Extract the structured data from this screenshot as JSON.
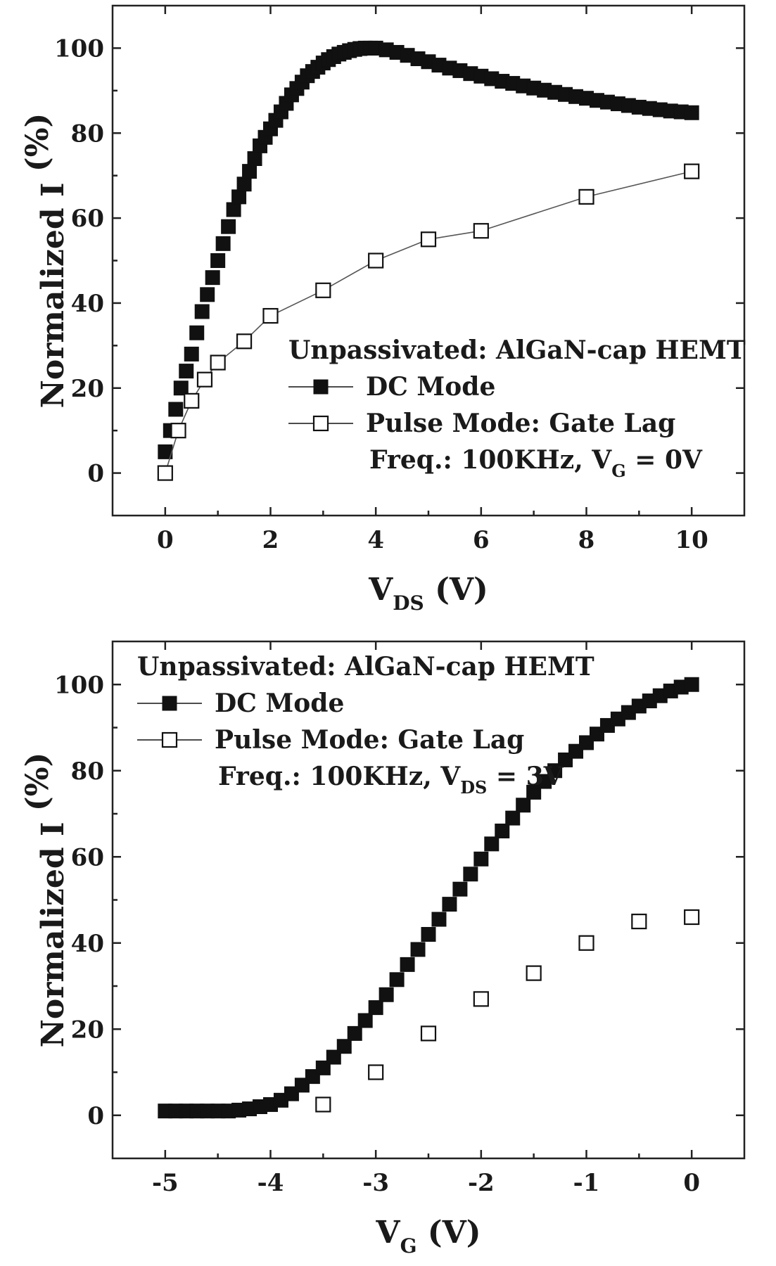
{
  "chart_data": [
    {
      "type": "scatter",
      "title": "",
      "xlabel": {
        "main": "V",
        "sub": "DS",
        "unit": " (V)"
      },
      "ylabel": {
        "main": "Normalized I",
        "unit": "(%)"
      },
      "xlim": [
        -1,
        11
      ],
      "ylim": [
        -10,
        110
      ],
      "xticks": [
        0,
        2,
        4,
        6,
        8,
        10
      ],
      "yticks": [
        0,
        20,
        40,
        60,
        80,
        100
      ],
      "grid": false,
      "legend": {
        "placement": "center-right",
        "title": "Unpassivated: AlGaN-cap HEMT",
        "note": {
          "prefix": "Freq.: 100KHz, V",
          "sub": "G",
          "suffix": " = 0V"
        }
      },
      "series": [
        {
          "name": "DC Mode",
          "marker": "filled-square",
          "x": [
            0.0,
            0.1,
            0.2,
            0.3,
            0.4,
            0.5,
            0.6,
            0.7,
            0.8,
            0.9,
            1.0,
            1.1,
            1.2,
            1.3,
            1.4,
            1.5,
            1.6,
            1.7,
            1.8,
            1.9,
            2.0,
            2.1,
            2.2,
            2.3,
            2.4,
            2.5,
            2.6,
            2.7,
            2.8,
            2.9,
            3.0,
            3.1,
            3.2,
            3.3,
            3.4,
            3.5,
            3.6,
            3.7,
            3.8,
            3.9,
            4.0,
            4.2,
            4.4,
            4.6,
            4.8,
            5.0,
            5.2,
            5.4,
            5.6,
            5.8,
            6.0,
            6.2,
            6.4,
            6.6,
            6.8,
            7.0,
            7.2,
            7.4,
            7.6,
            7.8,
            8.0,
            8.2,
            8.4,
            8.6,
            8.8,
            9.0,
            9.2,
            9.4,
            9.6,
            9.8,
            10.0
          ],
          "y": [
            5,
            10,
            15,
            20,
            24,
            28,
            33,
            38,
            42,
            46,
            50,
            54,
            58,
            62,
            65,
            68,
            71,
            74,
            77,
            79,
            81,
            83,
            85,
            87,
            89,
            90.5,
            92,
            93.5,
            94.5,
            95.5,
            96.5,
            97.3,
            98,
            98.6,
            99,
            99.4,
            99.7,
            99.9,
            100,
            100,
            100,
            99.6,
            99,
            98.3,
            97.5,
            96.8,
            96,
            95.3,
            94.7,
            94,
            93.4,
            92.8,
            92.2,
            91.7,
            91.1,
            90.6,
            90.1,
            89.6,
            89.1,
            88.6,
            88.2,
            87.7,
            87.3,
            86.9,
            86.5,
            86.1,
            85.8,
            85.5,
            85.2,
            85,
            84.8
          ]
        },
        {
          "name": "Pulse Mode: Gate Lag",
          "marker": "open-square",
          "x": [
            0,
            0.25,
            0.5,
            0.75,
            1.0,
            1.5,
            2.0,
            3.0,
            4.0,
            5.0,
            6.0,
            8.0,
            10.0
          ],
          "y": [
            0,
            10,
            17,
            22,
            26,
            31,
            37,
            43,
            50,
            55,
            57,
            65,
            71
          ]
        }
      ]
    },
    {
      "type": "scatter",
      "title": "",
      "xlabel": {
        "main": "V",
        "sub": "G",
        "unit": " (V)"
      },
      "ylabel": {
        "main": "Normalized I",
        "unit": "(%)"
      },
      "xlim": [
        -5.5,
        0.5
      ],
      "ylim": [
        -10,
        110
      ],
      "xticks": [
        -5,
        -4,
        -3,
        -2,
        -1,
        0
      ],
      "yticks": [
        0,
        20,
        40,
        60,
        80,
        100
      ],
      "grid": false,
      "legend": {
        "placement": "top-left",
        "title": "Unpassivated: AlGaN-cap HEMT",
        "note": {
          "prefix": "Freq.: 100KHz, V",
          "sub": "DS",
          "suffix": " = 3V"
        }
      },
      "series": [
        {
          "name": "DC Mode",
          "marker": "filled-square",
          "x": [
            -5.0,
            -4.9,
            -4.8,
            -4.7,
            -4.6,
            -4.5,
            -4.4,
            -4.3,
            -4.2,
            -4.1,
            -4.0,
            -3.9,
            -3.8,
            -3.7,
            -3.6,
            -3.5,
            -3.4,
            -3.3,
            -3.2,
            -3.1,
            -3.0,
            -2.9,
            -2.8,
            -2.7,
            -2.6,
            -2.5,
            -2.4,
            -2.3,
            -2.2,
            -2.1,
            -2.0,
            -1.9,
            -1.8,
            -1.7,
            -1.6,
            -1.5,
            -1.4,
            -1.3,
            -1.2,
            -1.1,
            -1.0,
            -0.9,
            -0.8,
            -0.7,
            -0.6,
            -0.5,
            -0.4,
            -0.3,
            -0.2,
            -0.1,
            0.0
          ],
          "y": [
            1,
            1,
            1,
            1,
            1,
            1,
            1,
            1.2,
            1.5,
            2,
            2.5,
            3.5,
            5,
            7,
            9,
            11,
            13.5,
            16,
            19,
            22,
            25,
            28,
            31.5,
            35,
            38.5,
            42,
            45.5,
            49,
            52.5,
            56,
            59.5,
            63,
            66,
            69,
            72,
            75,
            77.5,
            80,
            82.5,
            84.5,
            86.5,
            88.5,
            90.5,
            92,
            93.5,
            95,
            96.2,
            97.4,
            98.5,
            99.4,
            100
          ]
        },
        {
          "name": "Pulse Mode: Gate Lag",
          "marker": "open-square",
          "x": [
            -3.5,
            -3.0,
            -2.5,
            -2.0,
            -1.5,
            -1.0,
            -0.5,
            0.0
          ],
          "y": [
            2.5,
            10,
            19,
            27,
            33,
            40,
            45,
            46
          ]
        }
      ]
    }
  ]
}
